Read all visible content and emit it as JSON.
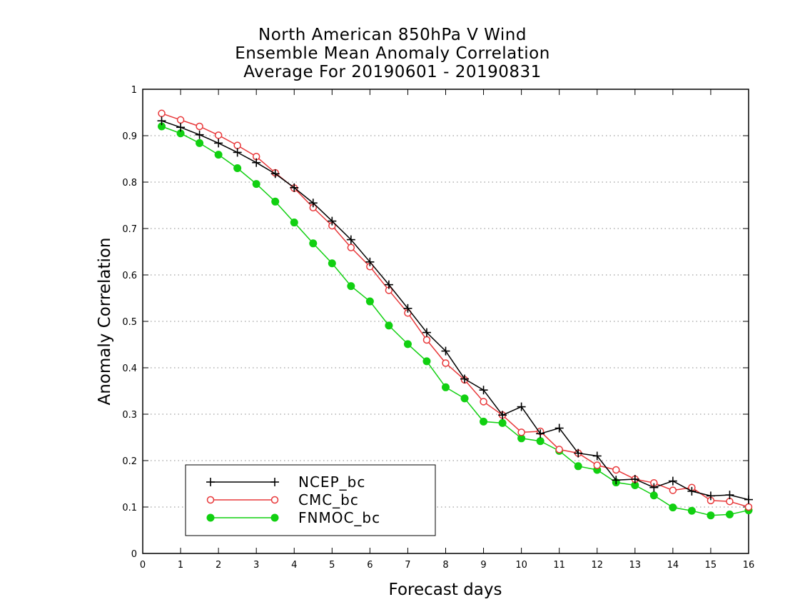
{
  "chart_data": {
    "type": "line",
    "title": [
      "North American 850hPa V Wind",
      "Ensemble Mean Anomaly Correlation",
      "Average For 20190601 - 20190831"
    ],
    "xlabel": "Forecast days",
    "ylabel": "Anomaly Correlation",
    "xlim": [
      0,
      16
    ],
    "ylim": [
      0,
      1
    ],
    "xticks": [
      "0",
      "1",
      "2",
      "3",
      "4",
      "5",
      "6",
      "7",
      "8",
      "9",
      "10",
      "11",
      "12",
      "13",
      "14",
      "15",
      "16"
    ],
    "yticks": [
      "0",
      "0.1",
      "0.2",
      "0.3",
      "0.4",
      "0.5",
      "0.6",
      "0.7",
      "0.8",
      "0.9",
      "1"
    ],
    "grid": "dotted horizontal",
    "legend_position": "bottom-left",
    "x": [
      0.5,
      1,
      1.5,
      2,
      2.5,
      3,
      3.5,
      4,
      4.5,
      5,
      5.5,
      6,
      6.5,
      7,
      7.5,
      8,
      8.5,
      9,
      9.5,
      10,
      10.5,
      11,
      11.5,
      12,
      12.5,
      13,
      13.5,
      14,
      14.5,
      15,
      15.5,
      16
    ],
    "series": [
      {
        "name": "NCEP_bc",
        "color": "#000000",
        "marker": "plus",
        "values": [
          0.932,
          0.918,
          0.902,
          0.884,
          0.864,
          0.842,
          0.818,
          0.788,
          0.755,
          0.716,
          0.676,
          0.628,
          0.579,
          0.528,
          0.476,
          0.436,
          0.376,
          0.352,
          0.298,
          0.316,
          0.258,
          0.27,
          0.216,
          0.21,
          0.158,
          0.16,
          0.142,
          0.156,
          0.134,
          0.124,
          0.126,
          0.116
        ]
      },
      {
        "name": "CMC_bc",
        "color": "#e8383a",
        "marker": "open-circle",
        "values": [
          0.948,
          0.934,
          0.92,
          0.901,
          0.879,
          0.855,
          0.82,
          0.787,
          0.745,
          0.706,
          0.659,
          0.618,
          0.567,
          0.518,
          0.46,
          0.41,
          0.374,
          0.327,
          0.298,
          0.261,
          0.263,
          0.224,
          0.216,
          0.19,
          0.18,
          0.16,
          0.152,
          0.136,
          0.142,
          0.114,
          0.112,
          0.1
        ]
      },
      {
        "name": "FNMOC_bc",
        "color": "#11d011",
        "marker": "filled-circle",
        "values": [
          0.92,
          0.905,
          0.884,
          0.859,
          0.83,
          0.796,
          0.758,
          0.713,
          0.668,
          0.625,
          0.576,
          0.543,
          0.491,
          0.451,
          0.414,
          0.358,
          0.334,
          0.284,
          0.281,
          0.248,
          0.242,
          0.221,
          0.188,
          0.18,
          0.153,
          0.147,
          0.125,
          0.099,
          0.092,
          0.082,
          0.084,
          0.093
        ]
      }
    ]
  }
}
